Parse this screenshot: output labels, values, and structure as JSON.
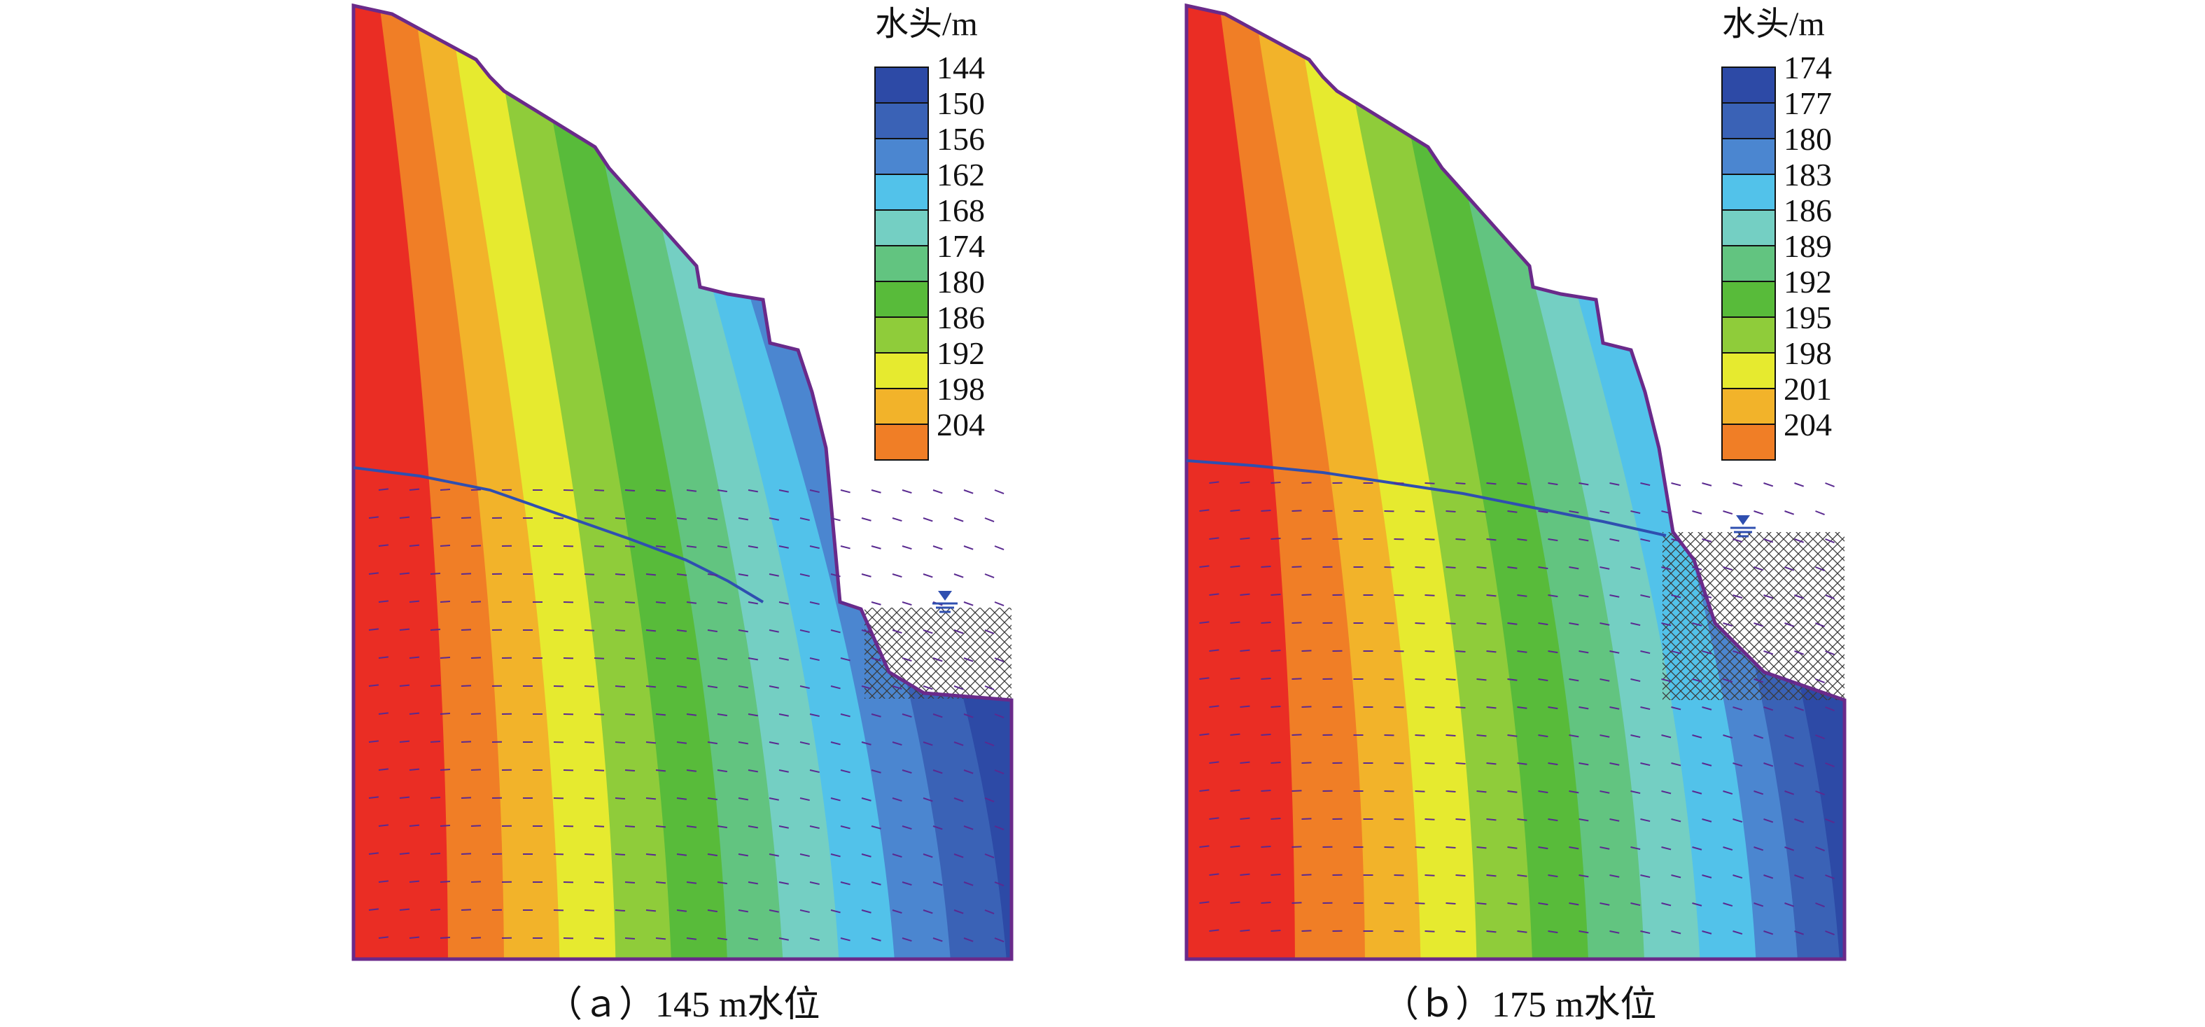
{
  "panels": [
    {
      "caption": "（ａ）145 m水位",
      "legend": {
        "title": "水头/m",
        "ticks": [
          "144",
          "150",
          "156",
          "162",
          "168",
          "174",
          "180",
          "186",
          "192",
          "198",
          "204"
        ]
      }
    },
    {
      "caption": "（ｂ）175 m水位",
      "legend": {
        "title": "水头/m",
        "ticks": [
          "174",
          "177",
          "180",
          "183",
          "186",
          "189",
          "192",
          "195",
          "198",
          "201",
          "204"
        ]
      }
    }
  ],
  "colors": {
    "scale": [
      "#2d4aa6",
      "#3a62b6",
      "#4b86d0",
      "#52c2ea",
      "#74cfc3",
      "#62c480",
      "#58bb3a",
      "#8fcc3a",
      "#e6ea2f",
      "#f2b32a",
      "#f07e26",
      "#ea2d24"
    ],
    "outline": "#6a2a8a",
    "phreatic": "#2f4fb0",
    "arrow": "#5a2a90",
    "hatch": "#333333"
  },
  "icons": {
    "water_level": "water-level-triangle-icon"
  }
}
